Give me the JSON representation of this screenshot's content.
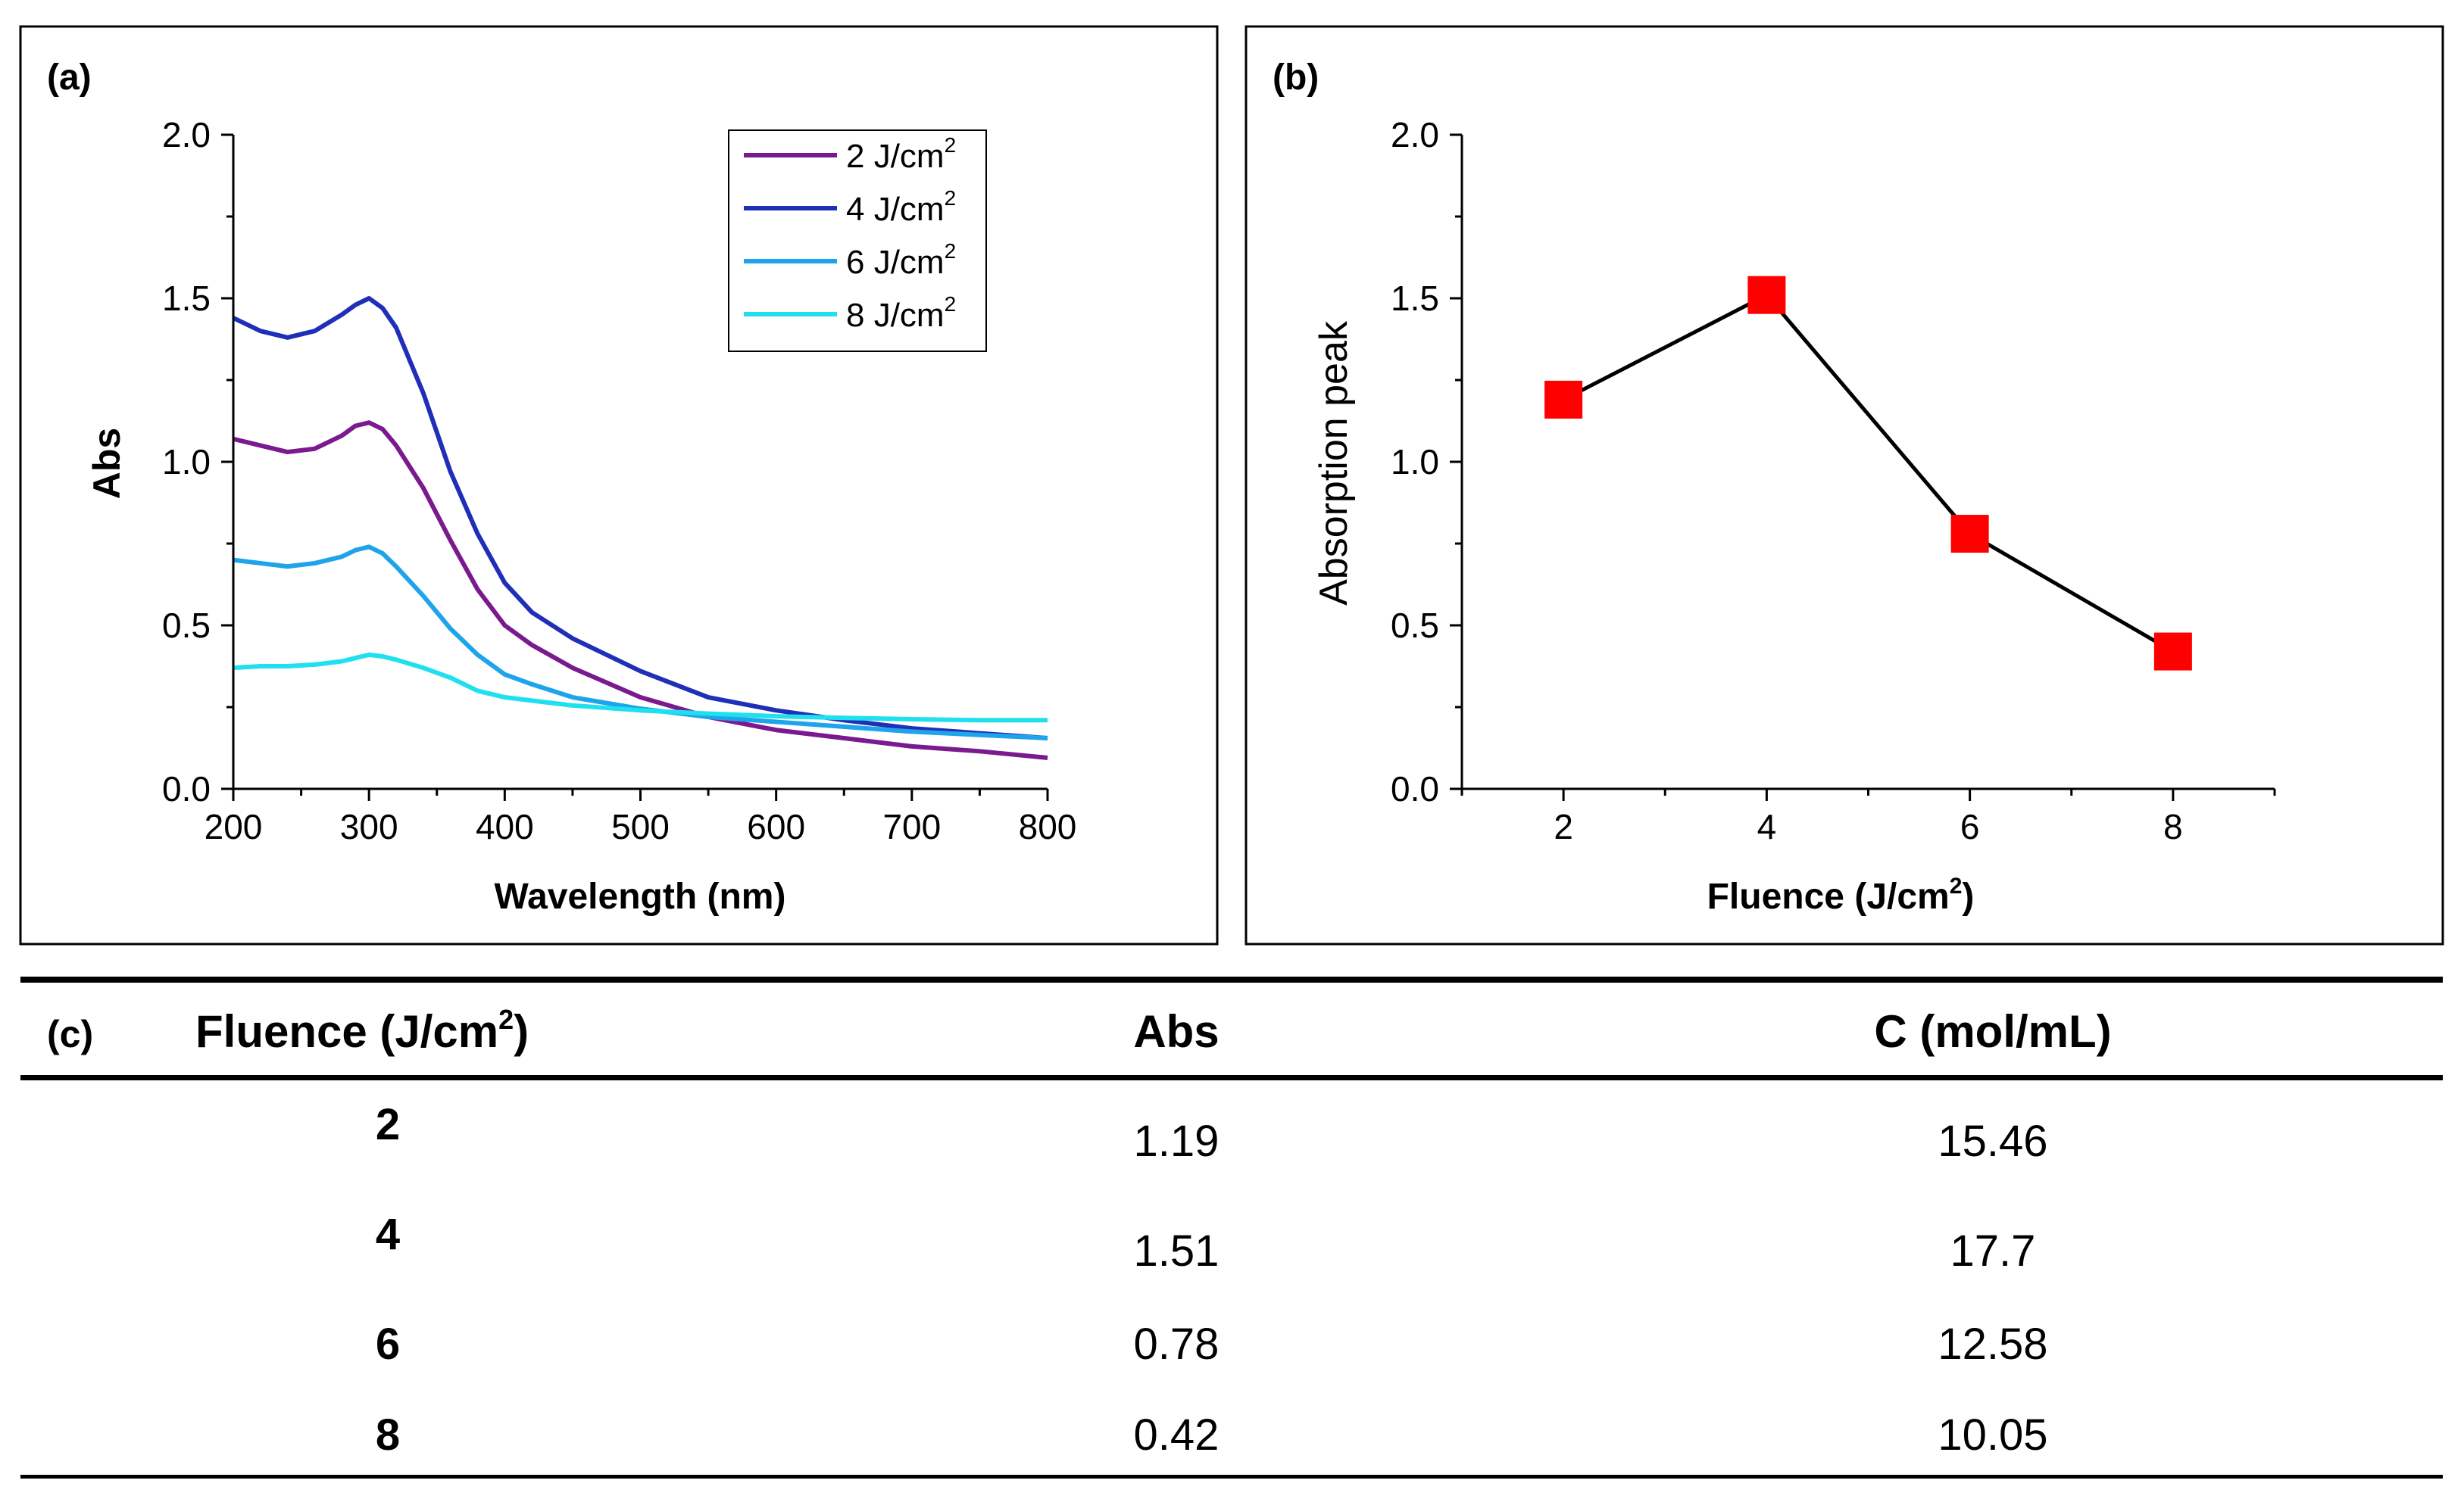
{
  "panel_a": {
    "label": "(a)",
    "chart_data": {
      "type": "line",
      "title": "",
      "xlabel": "Wavelength (nm)",
      "ylabel": "Abs",
      "xlim": [
        200,
        800
      ],
      "ylim": [
        0.0,
        2.0
      ],
      "xticks": [
        "200",
        "300",
        "400",
        "500",
        "600",
        "700",
        "800"
      ],
      "yticks": [
        "0.0",
        "0.5",
        "1.0",
        "1.5",
        "2.0"
      ],
      "x": [
        200,
        220,
        240,
        260,
        280,
        290,
        300,
        310,
        320,
        340,
        360,
        380,
        400,
        420,
        450,
        500,
        550,
        600,
        650,
        700,
        750,
        800
      ],
      "series": [
        {
          "name": "2 J/cm",
          "sup": "2",
          "color": "#7b1a8f",
          "values": [
            1.07,
            1.05,
            1.03,
            1.04,
            1.08,
            1.11,
            1.12,
            1.1,
            1.05,
            0.92,
            0.76,
            0.61,
            0.5,
            0.44,
            0.37,
            0.28,
            0.22,
            0.18,
            0.155,
            0.13,
            0.115,
            0.095
          ]
        },
        {
          "name": "4 J/cm",
          "sup": "2",
          "color": "#1f2fb8",
          "values": [
            1.44,
            1.4,
            1.38,
            1.4,
            1.45,
            1.48,
            1.5,
            1.47,
            1.41,
            1.21,
            0.97,
            0.78,
            0.63,
            0.54,
            0.46,
            0.36,
            0.28,
            0.24,
            0.21,
            0.185,
            0.17,
            0.155
          ]
        },
        {
          "name": "6 J/cm",
          "sup": "2",
          "color": "#1ea4ea",
          "values": [
            0.7,
            0.69,
            0.68,
            0.69,
            0.71,
            0.73,
            0.74,
            0.72,
            0.68,
            0.59,
            0.49,
            0.41,
            0.35,
            0.32,
            0.28,
            0.245,
            0.22,
            0.205,
            0.19,
            0.175,
            0.165,
            0.155
          ]
        },
        {
          "name": "8 J/cm",
          "sup": "2",
          "color": "#20e0f0",
          "values": [
            0.37,
            0.375,
            0.375,
            0.38,
            0.39,
            0.4,
            0.41,
            0.405,
            0.395,
            0.37,
            0.34,
            0.3,
            0.28,
            0.27,
            0.255,
            0.24,
            0.23,
            0.222,
            0.217,
            0.213,
            0.21,
            0.21
          ]
        }
      ],
      "legend_position": "top-right"
    }
  },
  "panel_b": {
    "label": "(b)",
    "chart_data": {
      "type": "line",
      "title": "",
      "xlabel": "Fluence (J/cm",
      "xlabel_sup": "2",
      "xlabel_end": ")",
      "ylabel": "Absorption peak",
      "xlim": [
        1,
        9
      ],
      "ylim": [
        0.0,
        2.0
      ],
      "xticks": [
        "2",
        "4",
        "6",
        "8"
      ],
      "yticks": [
        "0.0",
        "0.5",
        "1.0",
        "1.5",
        "2.0"
      ],
      "x": [
        2,
        4,
        6,
        8
      ],
      "values": [
        1.19,
        1.51,
        0.78,
        0.42
      ],
      "line_color": "#000000",
      "marker_color": "#ff0000"
    }
  },
  "panel_c": {
    "label": "(c)",
    "headers": {
      "fluence": "Fluence (J/cm",
      "fluence_sup": "2",
      "fluence_end": ")",
      "abs": "Abs",
      "conc": "C (mol/mL)"
    },
    "rows": [
      {
        "fluence": "2",
        "abs": "1.19",
        "conc": "15.46"
      },
      {
        "fluence": "4",
        "abs": "1.51",
        "conc": "17.7"
      },
      {
        "fluence": "6",
        "abs": "0.78",
        "conc": "12.58"
      },
      {
        "fluence": "8",
        "abs": "0.42",
        "conc": "10.05"
      }
    ]
  }
}
